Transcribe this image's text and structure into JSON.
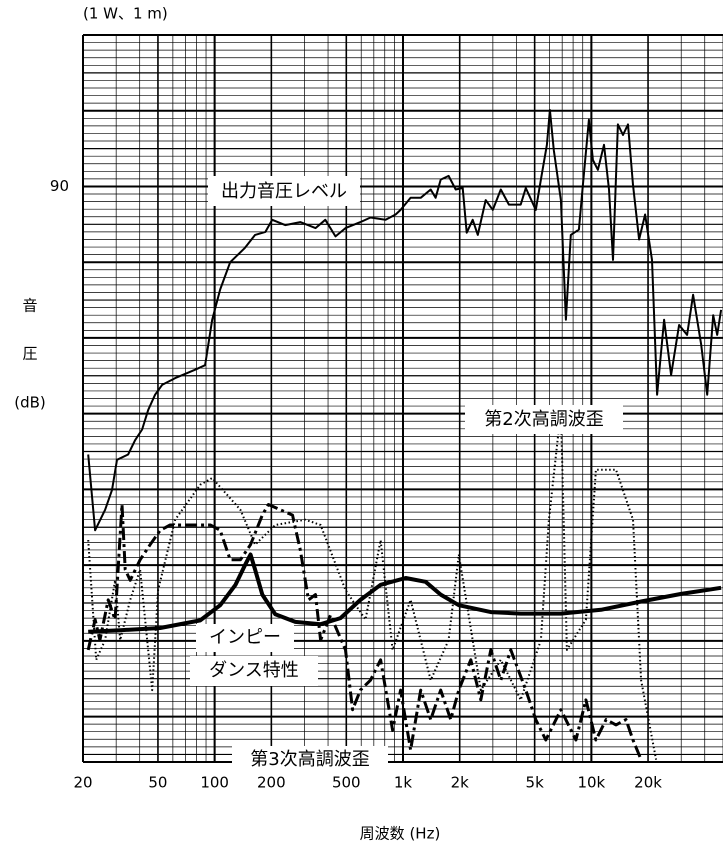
{
  "chart_data": {
    "type": "line",
    "title": "(1 W、1 m)",
    "x_label": "周波数 (Hz)",
    "y_label": [
      "音",
      "圧",
      "(dB)"
    ],
    "annotations": [
      "出力音圧レベル",
      "第2次高調波歪",
      "インピー",
      "ダンス特性",
      "第3次高調波歪"
    ],
    "log_x": true,
    "grid": true,
    "xlim": [
      20,
      50000
    ],
    "ylim": [
      14,
      110
    ],
    "xticks": [
      20,
      50,
      100,
      200,
      500,
      {
        "value": 1000,
        "label": "1k"
      },
      {
        "value": 2000,
        "label": "2k"
      },
      {
        "value": 5000,
        "label": "5k"
      },
      {
        "value": 10000,
        "label": "10k"
      },
      {
        "value": 20000,
        "label": "20k"
      }
    ],
    "yticks": [
      90
    ],
    "series": [
      {
        "name": "出力音圧レベル",
        "color": "#000000",
        "style": "solid",
        "width": 2,
        "x": [
          21.3,
          23.2,
          26.2,
          28.5,
          30.3,
          34.7,
          37.8,
          41.2,
          44.4,
          48.3,
          52.6,
          61.7,
          78.8,
          89,
          97,
          107,
          121,
          145,
          164,
          186,
          202,
          237,
          285,
          343,
          387,
          438,
          495,
          594,
          672,
          808,
          914,
          971,
          1097,
          1241,
          1403,
          1490,
          1585,
          1746,
          1905,
          2075,
          2178,
          2344,
          2494,
          2748,
          2997,
          3304,
          3648,
          4217,
          4487,
          5071,
          5394,
          5806,
          6022,
          6320,
          6890,
          7326,
          7783,
          8590,
          9020,
          9707,
          10190,
          10840,
          11670,
          12410,
          13030,
          13840,
          14720,
          15660,
          16640,
          17930,
          19290,
          21000,
          22340,
          24340,
          26500,
          29240,
          32220,
          34680,
          38280,
          41220,
          44370,
          46580,
          48870
        ],
        "values": [
          54.6,
          44.6,
          47.3,
          49.9,
          53.9,
          54.6,
          56.5,
          57.9,
          60.5,
          62.5,
          63.8,
          64.7,
          65.8,
          66.4,
          72.4,
          76.4,
          80.0,
          81.9,
          83.6,
          84.0,
          85.6,
          84.9,
          85.3,
          84.5,
          85.6,
          83.4,
          84.5,
          85.3,
          85.9,
          85.6,
          86.3,
          86.9,
          88.5,
          88.5,
          89.6,
          88.5,
          90.9,
          91.4,
          89.6,
          89.8,
          83.9,
          85.6,
          83.6,
          88.2,
          86.9,
          89.6,
          87.6,
          87.6,
          89.8,
          86.9,
          90.9,
          95.5,
          100.1,
          94.8,
          88.2,
          72.4,
          83.6,
          84.3,
          90.2,
          98.8,
          93.5,
          92.2,
          95.5,
          89.6,
          80.3,
          98.2,
          96.8,
          98.2,
          90.2,
          83.0,
          86.3,
          80.3,
          62.5,
          72.4,
          65.1,
          71.7,
          70.4,
          75.7,
          69.1,
          62.5,
          73.0,
          70.4,
          73.7
        ]
      },
      {
        "name": "第2次高調波歪",
        "color": "#000000",
        "style": "dotted",
        "width": 2,
        "x": [
          21.3,
          23.5,
          26.2,
          29.6,
          31.5,
          35.6,
          40.2,
          46.6,
          50.1,
          61.7,
          83.8,
          97,
          137,
          164,
          210,
          303,
          365,
          495,
          632,
          760,
          881,
          1097,
          1403,
          1746,
          1978,
          2588,
          3304,
          4217,
          5394,
          5950,
          6890,
          7414,
          9354,
          10570,
          13520,
          16640,
          18370,
          22080
        ],
        "values": [
          43.3,
          27.5,
          30.1,
          38.0,
          30.1,
          35.4,
          39.4,
          23.5,
          36.7,
          46.0,
          50.6,
          51.5,
          47.3,
          42.7,
          45.3,
          46.0,
          45.3,
          36.7,
          32.8,
          43.3,
          28.8,
          35.4,
          24.8,
          30.1,
          41.4,
          23.5,
          27.5,
          22.2,
          30.1,
          46.0,
          60.5,
          28.8,
          32.8,
          52.6,
          52.6,
          46.0,
          24.8,
          14.3
        ]
      },
      {
        "name": "第3次高調波歪",
        "color": "#000000",
        "style": "dashdot",
        "width": 3,
        "x": [
          21.3,
          23.2,
          24.6,
          27.2,
          29.6,
          32.2,
          33.5,
          35.6,
          40.2,
          45.4,
          51.4,
          58.0,
          74.2,
          94.8,
          107,
          121,
          137,
          155,
          179,
          193,
          223,
          259,
          285,
          315,
          343,
          365,
          412,
          495,
          540,
          594,
          672,
          760,
          881,
          971,
          1097,
          1241,
          1403,
          1585,
          1791,
          1978,
          2290,
          2588,
          2925,
          3304,
          3735,
          4487,
          5071,
          5729,
          6890,
          8280,
          9354,
          10570,
          11970,
          13520,
          15270,
          16640,
          18370
        ],
        "values": [
          28.8,
          32.8,
          30.1,
          35.4,
          32.8,
          48.0,
          39.4,
          38.0,
          40.7,
          42.7,
          44.6,
          45.3,
          45.3,
          45.3,
          44.6,
          40.7,
          40.7,
          42.7,
          46.6,
          48.0,
          47.3,
          46.6,
          42.0,
          35.4,
          36.1,
          30.1,
          33.4,
          28.8,
          20.9,
          23.5,
          24.8,
          27.5,
          18.2,
          23.5,
          15.6,
          23.5,
          19.6,
          23.5,
          19.6,
          23.5,
          27.5,
          22.2,
          28.8,
          24.8,
          28.8,
          23.5,
          19.6,
          16.9,
          20.9,
          16.9,
          22.2,
          16.9,
          19.6,
          18.9,
          19.6,
          16.9,
          14.3
        ]
      },
      {
        "name": "インピーダンス特性",
        "color": "#000000",
        "style": "solid",
        "width": 4,
        "x": [
          21.3,
          31.5,
          51.4,
          83.8,
          107,
          129,
          145,
          155,
          164,
          179,
          210,
          268,
          365,
          466,
          594,
          760,
          1033,
          1318,
          1585,
          1978,
          2925,
          4217,
          6890,
          11250,
          18370,
          29980,
          48870
        ],
        "values": [
          31.2,
          31.4,
          31.7,
          32.7,
          34.7,
          37.4,
          40.0,
          41.4,
          39.4,
          36.1,
          33.5,
          32.5,
          32.2,
          33.0,
          35.4,
          37.4,
          38.3,
          37.8,
          36.1,
          34.7,
          33.8,
          33.6,
          33.6,
          34.1,
          35.2,
          36.2,
          37.0
        ]
      }
    ]
  }
}
